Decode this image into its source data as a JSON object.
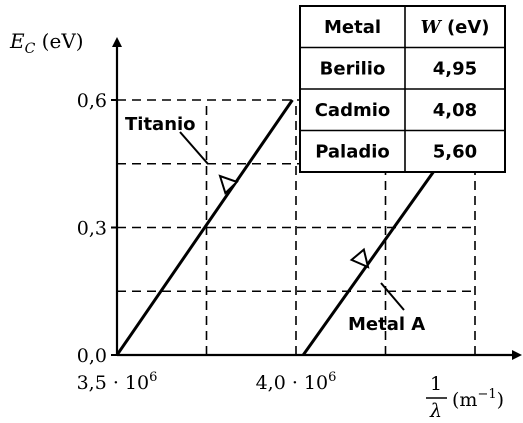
{
  "chart_data": {
    "type": "line",
    "title": "",
    "ylabel_var": "E",
    "ylabel_sub": "C",
    "ylabel_unit": "(eV)",
    "xlabel_num": "1",
    "xlabel_den": "λ",
    "xlabel_unit": "(m",
    "xlabel_unit_sup": "−1",
    "xlabel_unit_close": ")",
    "xlim": [
      3500000,
      4500000
    ],
    "ylim": [
      0,
      0.6
    ],
    "x_ticks": [
      {
        "value": 3500000,
        "mantissa": "3,5 · 10",
        "exp": "6"
      },
      {
        "value": 4000000,
        "mantissa": "4,0 · 10",
        "exp": "6"
      }
    ],
    "y_ticks": [
      {
        "value": 0.0,
        "label": "0,0"
      },
      {
        "value": 0.3,
        "label": "0,3"
      },
      {
        "value": 0.6,
        "label": "0,6"
      }
    ],
    "grid_x": [
      3750000,
      4000000,
      4250000,
      4500000
    ],
    "grid_y": [
      0.15,
      0.3,
      0.45,
      0.6
    ],
    "series": [
      {
        "name": "Titanio",
        "x": [
          3500000,
          3990000
        ],
        "y": [
          0.0,
          0.6
        ]
      },
      {
        "name": "Metal A",
        "x": [
          4020000,
          4400000
        ],
        "y": [
          0.0,
          0.45
        ]
      }
    ],
    "annotations": [
      {
        "text": "Titanio",
        "series": "Titanio",
        "point": [
          3760000,
          0.32
        ]
      },
      {
        "text": "Metal A",
        "series": "Metal A",
        "point": [
          4220000,
          0.22
        ]
      }
    ]
  },
  "table": {
    "headers": [
      {
        "parts": [
          {
            "text": "Metal",
            "italic": false
          }
        ]
      },
      {
        "parts": [
          {
            "text": "W",
            "italic": true
          },
          {
            "text": " (eV)",
            "italic": false
          }
        ]
      }
    ],
    "rows": [
      {
        "metal": "Berilio",
        "w": "4,95"
      },
      {
        "metal": "Cadmio",
        "w": "4,08"
      },
      {
        "metal": "Paladio",
        "w": "5,60"
      }
    ]
  },
  "colors": {
    "line": "#000000",
    "grid": "#000000",
    "text": "#000000",
    "background": "#ffffff"
  }
}
